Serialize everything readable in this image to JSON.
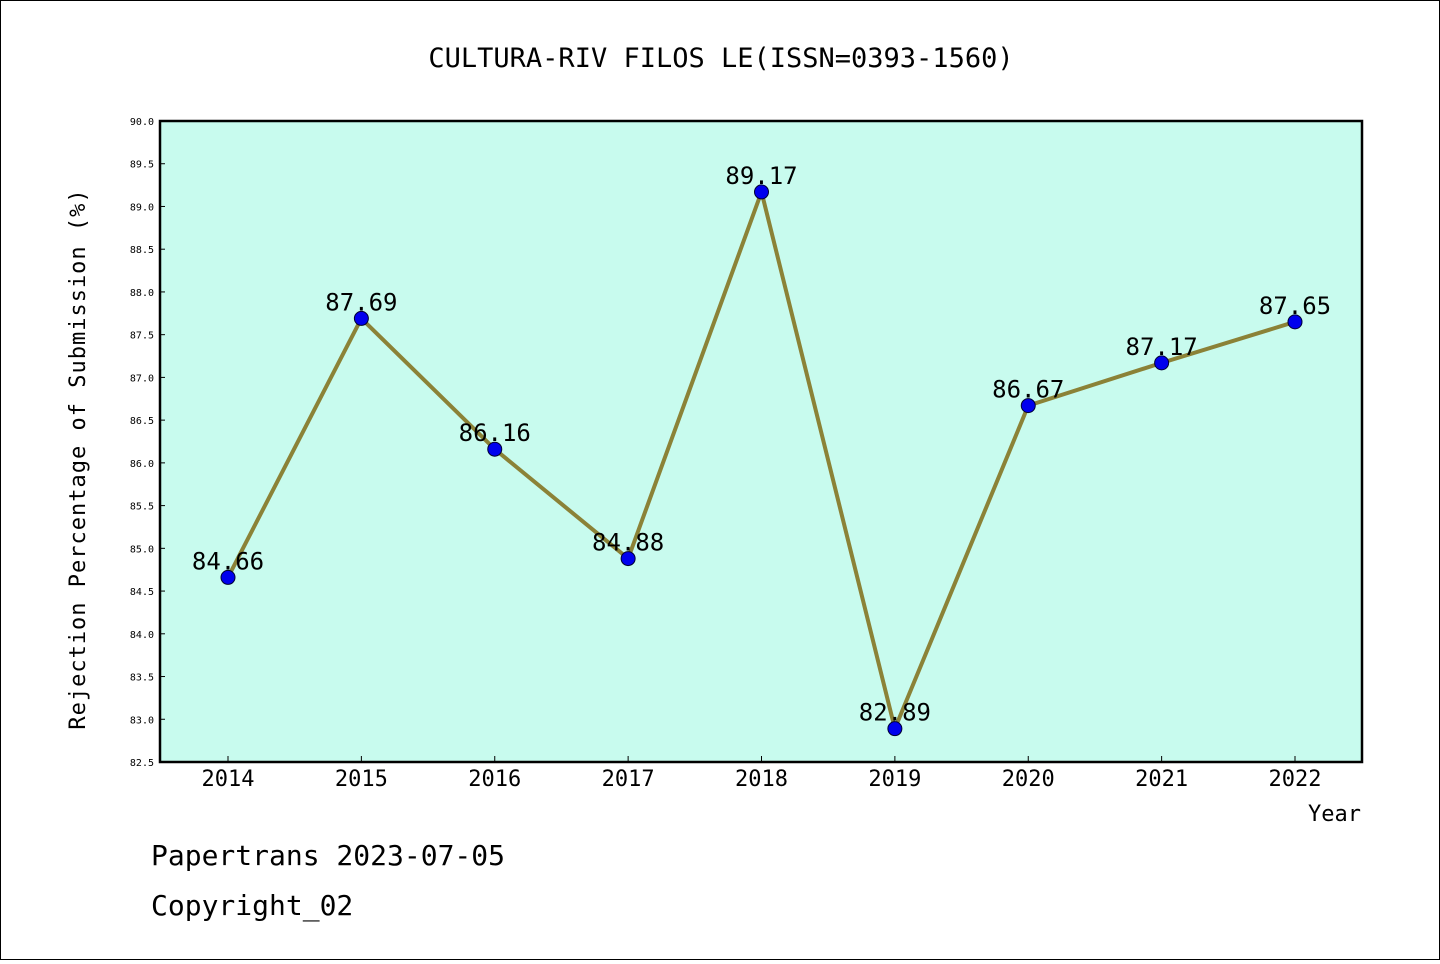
{
  "chart_data": {
    "type": "line",
    "title": "CULTURA-RIV FILOS LE(ISSN=0393-1560)",
    "xlabel": "Year",
    "ylabel": "Rejection Percentage of Submission (%)",
    "ylim": [
      82.5,
      90.0
    ],
    "yticks": [
      "82.5",
      "83.0",
      "83.5",
      "84.0",
      "84.5",
      "85.0",
      "85.5",
      "86.0",
      "86.5",
      "87.0",
      "87.5",
      "88.0",
      "88.5",
      "89.0",
      "89.5",
      "90.0"
    ],
    "categories": [
      "2014",
      "2015",
      "2016",
      "2017",
      "2018",
      "2019",
      "2020",
      "2021",
      "2022"
    ],
    "series": [
      {
        "values": [
          84.66,
          87.69,
          86.16,
          84.88,
          89.17,
          82.89,
          86.67,
          87.17,
          87.65
        ],
        "labels": [
          "84.66",
          "87.69",
          "86.16",
          "84.88",
          "89.17",
          "82.89",
          "86.67",
          "87.17",
          "87.65"
        ]
      }
    ],
    "grid": false,
    "colors": {
      "plot_background": "#c8fbee",
      "line": "#8b8237",
      "marker": "#0000ee"
    }
  },
  "footer": {
    "line1": "Papertrans 2023-07-05",
    "line2": "Copyright_02"
  }
}
